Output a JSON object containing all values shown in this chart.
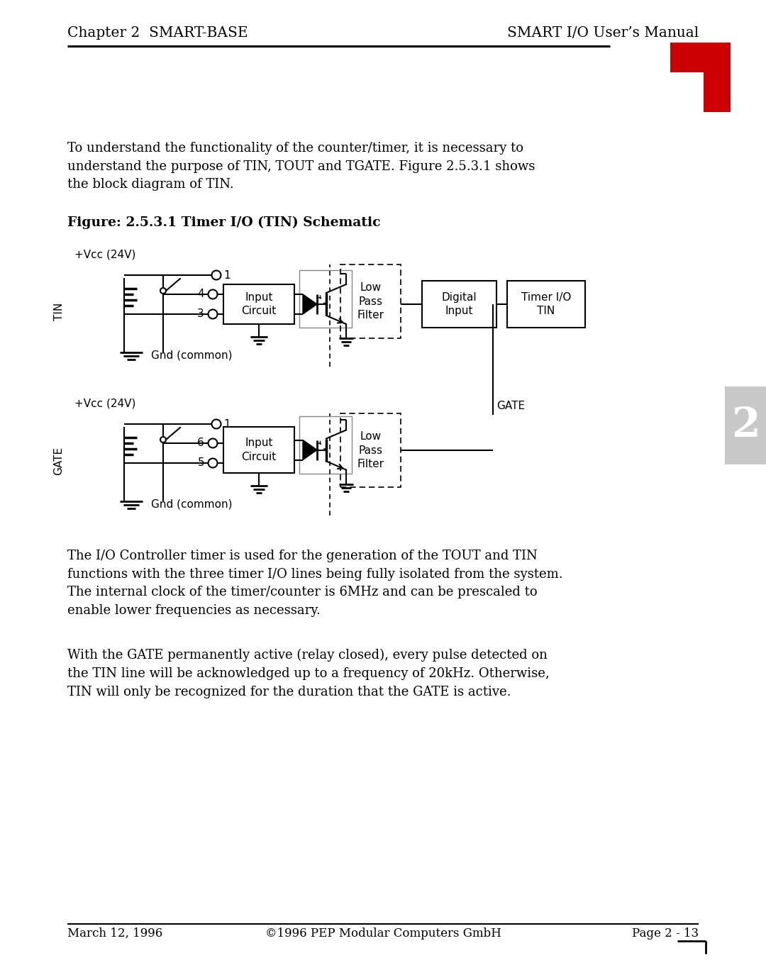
{
  "header_left": "Chapter 2  SMART-BASE",
  "header_right": "SMART I/O User’s Manual",
  "chapter_num": "2",
  "figure_label": "Figure: 2.5.3.1 Timer I/O (TIN) Schematic",
  "para1": "To understand the functionality of the counter/timer, it is necessary to\nunderstand the purpose of TIN, TOUT and TGATE. Figure 2.5.3.1 shows\nthe block diagram of TIN.",
  "para2": "The I/O Controller timer is used for the generation of the TOUT and TIN\nfunctions with the three timer I/O lines being fully isolated from the system.\nThe internal clock of the timer/counter is 6MHz and can be prescaled to\nenable lower frequencies as necessary.",
  "para3": "With the GATE permanently active (relay closed), every pulse detected on\nthe TIN line will be acknowledged up to a frequency of 20kHz. Otherwise,\nTIN will only be recognized for the duration that the GATE is active.",
  "footer_left": "March 12, 1996",
  "footer_center": "©1996 PEP Modular Computers GmbH",
  "footer_right": "Page 2 - 13",
  "bg_color": "#ffffff",
  "text_color": "#000000",
  "red_color": "#cc0000"
}
